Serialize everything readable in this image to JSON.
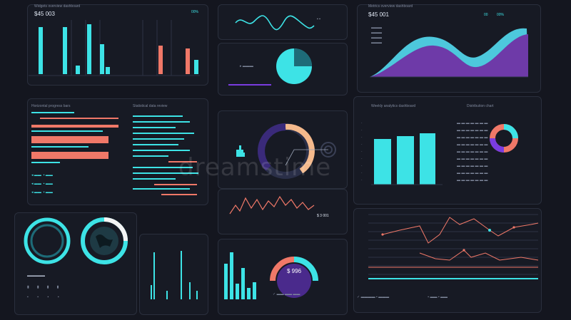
{
  "header_left": {
    "title": "Widgets overview dashboard",
    "value": "$45 003",
    "badge": "00%"
  },
  "header_right": {
    "title": "Metrics overview dashboard",
    "value": "$45 001",
    "badge_left": "00",
    "badge_right": "00%"
  },
  "watermark": "dreamstime",
  "center_donut": {
    "label": "$ 996"
  },
  "center_line": {
    "label": "$ 3 001"
  },
  "right_chart_title": "Weekly analytics dashboard",
  "right_pie_title": "Distribution chart",
  "bars_left_title": "Horizontal progress bars",
  "bars_mid_title": "Statistical data review",
  "colors": {
    "cyan": "#3de3e6",
    "coral": "#f07868",
    "purple": "#7a3ce0",
    "peach": "#f4b98c"
  }
}
